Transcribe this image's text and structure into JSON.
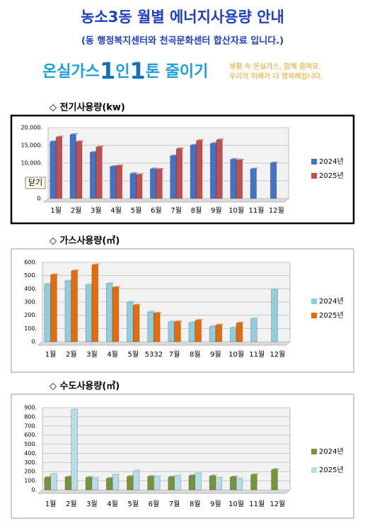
{
  "header": {
    "title": "농소3동 월별 에너지사용량 안내",
    "subtitle": "(동 행정복지센터와 천곡문화센터 합산자료 입니다.)"
  },
  "banner": {
    "slogan": [
      "온실가스",
      "1",
      "인",
      "1",
      "톤 줄이기"
    ],
    "message": [
      "생활 속 온실가스, 함께 줄여요.",
      "우리의 미래가 더 행복해집니다."
    ]
  },
  "button": {
    "close_label": "닫기"
  },
  "chart_data": [
    {
      "type": "bar",
      "title": "◇ 전기사용량(kw)",
      "categories": [
        "1월",
        "2월",
        "3월",
        "4월",
        "5월",
        "6월",
        "7월",
        "8월",
        "9월",
        "10월",
        "11월",
        "12월"
      ],
      "series": [
        {
          "name": "2024년",
          "color": "#4472c4",
          "values": [
            16000,
            18000,
            13000,
            9000,
            7000,
            8300,
            12000,
            15000,
            15500,
            11000,
            8300,
            10000
          ]
        },
        {
          "name": "2025년",
          "color": "#c0504d",
          "values": [
            17300,
            16000,
            14500,
            9200,
            6700,
            8200,
            14000,
            16300,
            16500,
            10800,
            null,
            null
          ]
        }
      ],
      "ylim": [
        0,
        20000
      ],
      "yticks": [
        {
          "value": 0,
          "label": "0."
        },
        {
          "value": 5000,
          "label": "5,000."
        },
        {
          "value": 10000,
          "label": "10,000."
        },
        {
          "value": 15000,
          "label": "15,000."
        },
        {
          "value": 20000,
          "label": "20,000."
        }
      ]
    },
    {
      "type": "bar",
      "title": "◇ 가스사용량(㎥)",
      "categories": [
        "1월",
        "2월",
        "3월",
        "4월",
        "5월",
        "5332",
        "7월",
        "8월",
        "9월",
        "10월",
        "11월",
        "12월"
      ],
      "series": [
        {
          "name": "2024년",
          "color": "#92cddc",
          "values": [
            435,
            460,
            430,
            440,
            300,
            225,
            150,
            145,
            115,
            105,
            175,
            395
          ]
        },
        {
          "name": "2025년",
          "color": "#e46c0a",
          "values": [
            505,
            535,
            580,
            410,
            275,
            215,
            150,
            160,
            125,
            140,
            null,
            null
          ]
        }
      ],
      "ylim": [
        0,
        600
      ],
      "yticks": [
        {
          "value": 0,
          "label": "0."
        },
        {
          "value": 100,
          "label": "100."
        },
        {
          "value": 200,
          "label": "200."
        },
        {
          "value": 300,
          "label": "300."
        },
        {
          "value": 400,
          "label": "400."
        },
        {
          "value": 500,
          "label": "500."
        },
        {
          "value": 600,
          "label": "600."
        }
      ]
    },
    {
      "type": "bar",
      "title": "◇ 수도사용량(㎥)",
      "categories": [
        "1월",
        "2월",
        "3월",
        "4월",
        "5월",
        "6월",
        "7월",
        "8월",
        "9월",
        "10월",
        "11월",
        "12월"
      ],
      "series": [
        {
          "name": "2024년",
          "color": "#77933c",
          "values": [
            135,
            140,
            135,
            125,
            145,
            145,
            140,
            155,
            150,
            140,
            165,
            220
          ]
        },
        {
          "name": "2025년",
          "color": "#b7dee8",
          "values": [
            175,
            880,
            130,
            170,
            210,
            145,
            155,
            185,
            135,
            125,
            null,
            null
          ]
        }
      ],
      "ylim": [
        0,
        900
      ],
      "yticks": [
        {
          "value": 0,
          "label": "0."
        },
        {
          "value": 100,
          "label": "100."
        },
        {
          "value": 200,
          "label": "200."
        },
        {
          "value": 300,
          "label": "300."
        },
        {
          "value": 400,
          "label": "400."
        },
        {
          "value": 500,
          "label": "500."
        },
        {
          "value": 600,
          "label": "600."
        },
        {
          "value": 700,
          "label": "700."
        },
        {
          "value": 800,
          "label": "800."
        },
        {
          "value": 900,
          "label": "900."
        }
      ]
    }
  ]
}
